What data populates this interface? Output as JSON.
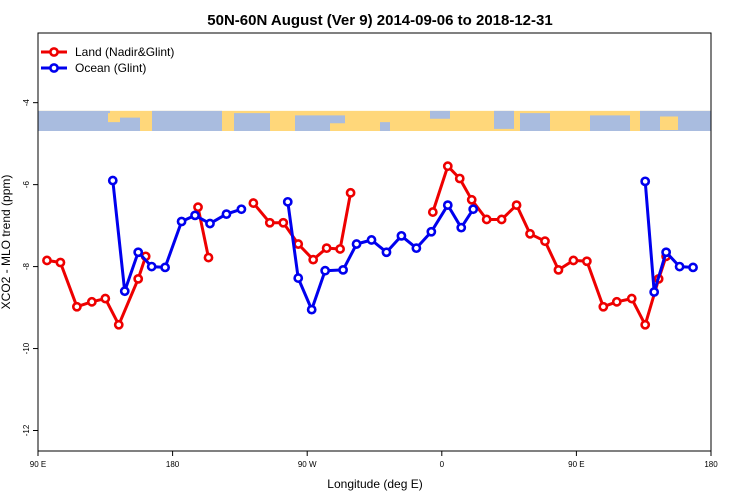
{
  "chart_data": {
    "type": "line",
    "title": "50N-60N August (Ver 9)   2014-09-06 to 2018-12-31",
    "xlabel": "Longitude (deg E)",
    "ylabel": "XCO2 - MLO trend (ppm)",
    "xlim": [
      90,
      540
    ],
    "ylim": [
      -12.5,
      -2.3
    ],
    "xticks": [
      {
        "value": 90,
        "label": "90 E"
      },
      {
        "value": 180,
        "label": "180"
      },
      {
        "value": 270,
        "label": "90 W"
      },
      {
        "value": 360,
        "label": "0"
      },
      {
        "value": 450,
        "label": "90 E"
      },
      {
        "value": 540,
        "label": "180"
      }
    ],
    "yticks": [
      {
        "value": -4,
        "label": "-4"
      },
      {
        "value": -6,
        "label": "-6"
      },
      {
        "value": -8,
        "label": "-8"
      },
      {
        "value": -10,
        "label": "-10"
      },
      {
        "value": -12,
        "label": "-12"
      }
    ],
    "grid": false,
    "legend_position": "top-left",
    "map_strip": {
      "y_top": -4.2,
      "y_bottom": -4.75,
      "land_color": "#ffd77a",
      "ocean_color": "#a9bcdf"
    },
    "series": [
      {
        "name": "Land (Nadir&Glint)",
        "color": "#ee0000",
        "segments": [
          [
            [
              96,
              -7.85
            ],
            [
              105,
              -7.9
            ],
            [
              116,
              -8.98
            ],
            [
              126,
              -8.86
            ],
            [
              135,
              -8.78
            ],
            [
              144,
              -9.42
            ],
            [
              157,
              -8.3
            ],
            [
              162,
              -7.75
            ]
          ],
          [
            [
              197,
              -6.55
            ],
            [
              204,
              -7.78
            ]
          ],
          [
            [
              234,
              -6.45
            ],
            [
              245,
              -6.93
            ],
            [
              254,
              -6.93
            ],
            [
              264,
              -7.45
            ],
            [
              274,
              -7.83
            ],
            [
              283,
              -7.55
            ],
            [
              292,
              -7.57
            ],
            [
              299,
              -6.2
            ]
          ],
          [
            [
              354,
              -6.67
            ],
            [
              364,
              -5.55
            ],
            [
              372,
              -5.85
            ],
            [
              380,
              -6.37
            ],
            [
              390,
              -6.85
            ],
            [
              400,
              -6.85
            ],
            [
              410,
              -6.5
            ],
            [
              419,
              -7.2
            ],
            [
              429,
              -7.38
            ],
            [
              438,
              -8.08
            ],
            [
              448,
              -7.85
            ],
            [
              457,
              -7.87
            ],
            [
              468,
              -8.98
            ],
            [
              477,
              -8.86
            ],
            [
              487,
              -8.78
            ],
            [
              496,
              -9.42
            ],
            [
              505,
              -8.3
            ],
            [
              510,
              -7.75
            ]
          ]
        ]
      },
      {
        "name": "Ocean (Glint)",
        "color": "#0000ee",
        "segments": [
          [
            [
              140,
              -5.9
            ],
            [
              148,
              -8.6
            ],
            [
              157,
              -7.65
            ],
            [
              166,
              -8.0
            ],
            [
              175,
              -8.02
            ],
            [
              186,
              -6.9
            ],
            [
              195,
              -6.75
            ],
            [
              205,
              -6.95
            ],
            [
              216,
              -6.72
            ],
            [
              226,
              -6.6
            ]
          ],
          [
            [
              257,
              -6.42
            ],
            [
              264,
              -8.28
            ],
            [
              273,
              -9.05
            ],
            [
              282,
              -8.1
            ],
            [
              294,
              -8.08
            ],
            [
              303,
              -7.45
            ],
            [
              313,
              -7.35
            ],
            [
              323,
              -7.65
            ],
            [
              333,
              -7.25
            ],
            [
              343,
              -7.55
            ],
            [
              353,
              -7.15
            ],
            [
              364,
              -6.5
            ],
            [
              373,
              -7.05
            ],
            [
              381,
              -6.6
            ]
          ],
          [
            [
              496,
              -5.92
            ],
            [
              502,
              -8.62
            ],
            [
              510,
              -7.65
            ],
            [
              519,
              -8.0
            ],
            [
              528,
              -8.02
            ]
          ]
        ]
      }
    ]
  }
}
